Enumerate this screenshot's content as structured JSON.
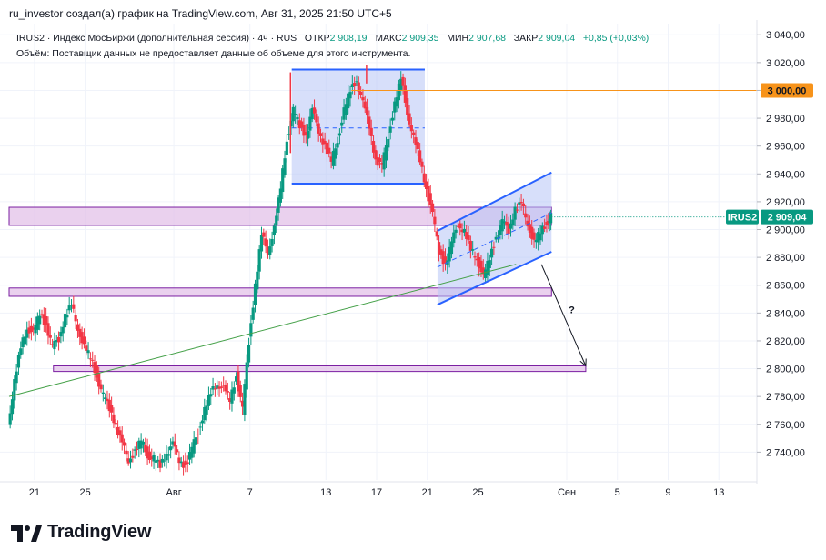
{
  "header": {
    "credit": "ru_investor создал(а) график на TradingView.com, Авг 31, 2025 21:50 UTC+5",
    "symbol_desc": "IRUS2 · Индекс МосБиржи (дополнительная сессия) · 4ч · RUS",
    "open_label": "ОТКР",
    "open_value": "2 908,19",
    "high_label": "МАКС",
    "high_value": "2 909,35",
    "low_label": "МИН",
    "low_value": "2 907,68",
    "close_label": "ЗАКР",
    "close_value": "2 909,04",
    "change": "+0,85 (+0,03%)",
    "volume_note": "Объём: Поставщик данных не предоставляет данные об объеме для этого инструмента."
  },
  "brand": {
    "name": "TradingView"
  },
  "colors": {
    "up": "#089981",
    "down": "#f23645",
    "box_fill": "#b7c5f5",
    "box_stroke": "#2962ff",
    "zone_fill": "#e1bee7",
    "zone_stroke": "#7b1fa2",
    "level_line": "#f7931a",
    "trend_line": "#43a047",
    "tag_bg": "#089981"
  },
  "chart_data": {
    "type": "candlestick",
    "title": "IRUS2 · Индекс МосБиржи (дополнительная сессия) · 4ч",
    "y_ticks": [
      "3 040,00",
      "3 020,00",
      "3 000,00",
      "2 980,00",
      "2 960,00",
      "2 940,00",
      "2 920,00",
      "2 900,00",
      "2 880,00",
      "2 860,00",
      "2 840,00",
      "2 820,00",
      "2 800,00",
      "2 780,00",
      "2 760,00",
      "2 740,00"
    ],
    "y_range": [
      2720,
      3048
    ],
    "x_ticks": [
      {
        "label": "21",
        "day": 0
      },
      {
        "label": "25",
        "day": 4
      },
      {
        "label": "Авг",
        "day": 11
      },
      {
        "label": "7",
        "day": 17
      },
      {
        "label": "13",
        "day": 23
      },
      {
        "label": "17",
        "day": 27
      },
      {
        "label": "21",
        "day": 31
      },
      {
        "label": "25",
        "day": 35
      },
      {
        "label": "Сен",
        "day": 42
      },
      {
        "label": "5",
        "day": 46
      },
      {
        "label": "9",
        "day": 50
      },
      {
        "label": "13",
        "day": 54
      }
    ],
    "x_range": [
      -2,
      57
    ],
    "last_day": 40.8,
    "price_path": [
      [
        -2.0,
        2760
      ],
      [
        -1.5,
        2790
      ],
      [
        -1.0,
        2815
      ],
      [
        -0.5,
        2830
      ],
      [
        0.0,
        2825
      ],
      [
        0.5,
        2840
      ],
      [
        1.0,
        2832
      ],
      [
        1.5,
        2815
      ],
      [
        2.0,
        2822
      ],
      [
        2.5,
        2838
      ],
      [
        3.0,
        2845
      ],
      [
        3.5,
        2830
      ],
      [
        4.0,
        2815
      ],
      [
        4.5,
        2808
      ],
      [
        5.0,
        2795
      ],
      [
        5.5,
        2780
      ],
      [
        6.0,
        2772
      ],
      [
        6.5,
        2760
      ],
      [
        7.0,
        2745
      ],
      [
        7.5,
        2735
      ],
      [
        8.0,
        2740
      ],
      [
        8.5,
        2748
      ],
      [
        9.0,
        2738
      ],
      [
        9.5,
        2735
      ],
      [
        10.0,
        2730
      ],
      [
        10.5,
        2740
      ],
      [
        11.0,
        2745
      ],
      [
        11.5,
        2735
      ],
      [
        12.0,
        2730
      ],
      [
        12.5,
        2742
      ],
      [
        13.0,
        2755
      ],
      [
        13.5,
        2770
      ],
      [
        14.0,
        2782
      ],
      [
        14.5,
        2790
      ],
      [
        15.0,
        2785
      ],
      [
        15.5,
        2778
      ],
      [
        16.0,
        2795
      ],
      [
        16.5,
        2770
      ],
      [
        17.0,
        2820
      ],
      [
        17.5,
        2860
      ],
      [
        18.0,
        2895
      ],
      [
        18.5,
        2885
      ],
      [
        19.0,
        2900
      ],
      [
        19.5,
        2930
      ],
      [
        20.0,
        2965
      ],
      [
        20.5,
        2985
      ],
      [
        21.0,
        2975
      ],
      [
        21.5,
        2968
      ],
      [
        22.0,
        2985
      ],
      [
        22.5,
        2972
      ],
      [
        23.0,
        2960
      ],
      [
        23.5,
        2948
      ],
      [
        24.0,
        2965
      ],
      [
        24.5,
        2985
      ],
      [
        25.0,
        3000
      ],
      [
        25.5,
        3008
      ],
      [
        26.0,
        2990
      ],
      [
        26.5,
        2975
      ],
      [
        27.0,
        2950
      ],
      [
        27.5,
        2945
      ],
      [
        28.0,
        2968
      ],
      [
        28.5,
        2990
      ],
      [
        29.0,
        3008
      ],
      [
        29.5,
        2985
      ],
      [
        30.0,
        2965
      ],
      [
        30.5,
        2950
      ],
      [
        31.0,
        2930
      ],
      [
        31.5,
        2910
      ],
      [
        32.0,
        2885
      ],
      [
        32.5,
        2875
      ],
      [
        33.0,
        2890
      ],
      [
        33.5,
        2905
      ],
      [
        34.0,
        2898
      ],
      [
        34.5,
        2885
      ],
      [
        35.0,
        2880
      ],
      [
        35.5,
        2865
      ],
      [
        36.0,
        2880
      ],
      [
        36.5,
        2895
      ],
      [
        37.0,
        2905
      ],
      [
        37.5,
        2900
      ],
      [
        38.0,
        2915
      ],
      [
        38.5,
        2918
      ],
      [
        39.0,
        2905
      ],
      [
        39.5,
        2890
      ],
      [
        40.0,
        2898
      ],
      [
        40.5,
        2905
      ],
      [
        40.8,
        2909
      ]
    ],
    "annotations": {
      "horizontal_level": {
        "price": 3000,
        "label": "3 000,00",
        "from_day": 25
      },
      "last_price_tag": {
        "symbol": "IRUS2",
        "label": "2 909,04",
        "price": 2909.04
      },
      "rect_upper_consolidation": {
        "day_from": 20.3,
        "day_to": 30.8,
        "price_from": 2933,
        "price_to": 3015,
        "mid_price": 2973
      },
      "rising_channel": {
        "upper": [
          [
            31.8,
            2899
          ],
          [
            40.8,
            2941
          ]
        ],
        "lower": [
          [
            31.8,
            2846
          ],
          [
            40.8,
            2884
          ]
        ],
        "mid": [
          [
            31.8,
            2873
          ],
          [
            40.8,
            2912
          ]
        ]
      },
      "resistance_zone": {
        "day_from": -2,
        "day_to": 40.8,
        "price_from": 2903,
        "price_to": 2916
      },
      "support_zone_upper": {
        "day_from": -2,
        "day_to": 40.8,
        "price_from": 2852,
        "price_to": 2858
      },
      "support_zone_lower": {
        "day_from": 1.5,
        "day_to": 43.5,
        "price_from": 2798,
        "price_to": 2802
      },
      "long_trendline": [
        [
          -2,
          2780
        ],
        [
          38,
          2875
        ]
      ],
      "forecast_arrow": {
        "from": [
          40.0,
          2875
        ],
        "to": [
          43.5,
          2802
        ],
        "label": "?"
      },
      "spike_lines": {
        "left": [
          20.2,
          2955,
          3013
        ],
        "right_top": [
          26.2,
          3005,
          3018
        ]
      }
    }
  }
}
